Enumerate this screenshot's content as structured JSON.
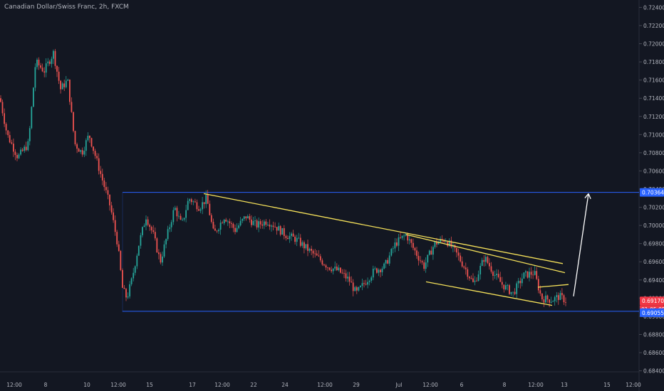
{
  "header": {
    "title": "Canadian Dollar/Swiss Franc, 2h, FXCM"
  },
  "colors": {
    "background": "#131722",
    "bull": "#26a69a",
    "bear": "#ef5350",
    "level_line": "#2962ff",
    "trendline": "#f5e15a",
    "arrow": "#ffffff",
    "axis_text": "#b2b5be",
    "badge_blue": "#2962ff",
    "badge_red": "#f23645"
  },
  "chart_data": {
    "type": "candlestick",
    "title": "Canadian Dollar/Swiss Franc, 2h, FXCM",
    "ylim": [
      0.6835,
      0.7245
    ],
    "y_ticks": [
      "0.72400",
      "0.72200",
      "0.72000",
      "0.71800",
      "0.71600",
      "0.71400",
      "0.71200",
      "0.71000",
      "0.70800",
      "0.70600",
      "0.70400",
      "0.70200",
      "0.70000",
      "0.69800",
      "0.69600",
      "0.69400",
      "0.69200",
      "0.69000",
      "0.68800",
      "0.68600",
      "0.68400"
    ],
    "x_ticks": [
      "12:00",
      "8",
      "10",
      "12:00",
      "15",
      "17",
      "12:00",
      "22",
      "24",
      "12:00",
      "29",
      "Jul",
      "12:00",
      "6",
      "8",
      "12:00",
      "13",
      "15",
      "12:00"
    ],
    "levels": {
      "resistance": {
        "value": 0.70364,
        "label": "0.70364"
      },
      "support": {
        "value": 0.69055,
        "label": "0.69055"
      }
    },
    "last_price": {
      "value": 0.6917,
      "label": "0.69170",
      "countdown": "01:05:05"
    },
    "price_path": [
      [
        0,
        0.714
      ],
      [
        10,
        0.71
      ],
      [
        25,
        0.7075
      ],
      [
        40,
        0.709
      ],
      [
        50,
        0.718
      ],
      [
        62,
        0.717
      ],
      [
        75,
        0.719
      ],
      [
        85,
        0.715
      ],
      [
        95,
        0.716
      ],
      [
        105,
        0.709
      ],
      [
        115,
        0.708
      ],
      [
        125,
        0.71
      ],
      [
        140,
        0.706
      ],
      [
        155,
        0.702
      ],
      [
        165,
        0.698
      ],
      [
        172,
        0.693
      ],
      [
        178,
        0.692
      ],
      [
        185,
        0.694
      ],
      [
        195,
        0.698
      ],
      [
        205,
        0.701
      ],
      [
        215,
        0.699
      ],
      [
        225,
        0.696
      ],
      [
        235,
        0.699
      ],
      [
        245,
        0.702
      ],
      [
        255,
        0.7
      ],
      [
        265,
        0.703
      ],
      [
        280,
        0.702
      ],
      [
        290,
        0.703
      ],
      [
        300,
        0.699
      ],
      [
        315,
        0.701
      ],
      [
        330,
        0.6995
      ],
      [
        345,
        0.701
      ],
      [
        360,
        0.7
      ],
      [
        375,
        0.7005
      ],
      [
        385,
        0.7
      ],
      [
        400,
        0.699
      ],
      [
        415,
        0.6985
      ],
      [
        430,
        0.6975
      ],
      [
        445,
        0.6965
      ],
      [
        460,
        0.6955
      ],
      [
        475,
        0.695
      ],
      [
        490,
        0.694
      ],
      [
        500,
        0.6925
      ],
      [
        510,
        0.6935
      ],
      [
        525,
        0.695
      ],
      [
        540,
        0.6955
      ],
      [
        555,
        0.698
      ],
      [
        570,
        0.699
      ],
      [
        580,
        0.6975
      ],
      [
        595,
        0.6955
      ],
      [
        610,
        0.698
      ],
      [
        625,
        0.6985
      ],
      [
        640,
        0.697
      ],
      [
        655,
        0.695
      ],
      [
        665,
        0.6935
      ],
      [
        680,
        0.6965
      ],
      [
        695,
        0.6945
      ],
      [
        705,
        0.6935
      ],
      [
        720,
        0.6925
      ],
      [
        735,
        0.6945
      ],
      [
        750,
        0.6948
      ],
      [
        760,
        0.692
      ],
      [
        775,
        0.6918
      ],
      [
        785,
        0.6922
      ],
      [
        795,
        0.6917
      ]
    ],
    "trendlines": [
      {
        "from": [
          286,
          0.7035
        ],
        "to": [
          790,
          0.6958
        ]
      },
      {
        "from": [
          570,
          0.699
        ],
        "to": [
          793,
          0.6948
        ]
      },
      {
        "from": [
          598,
          0.6938
        ],
        "to": [
          775,
          0.6912
        ]
      },
      {
        "from": [
          755,
          0.6932
        ],
        "to": [
          798,
          0.6935
        ]
      }
    ],
    "arrow": {
      "from": [
        805,
        0.6922
      ],
      "to": [
        826,
        0.7035
      ]
    }
  }
}
